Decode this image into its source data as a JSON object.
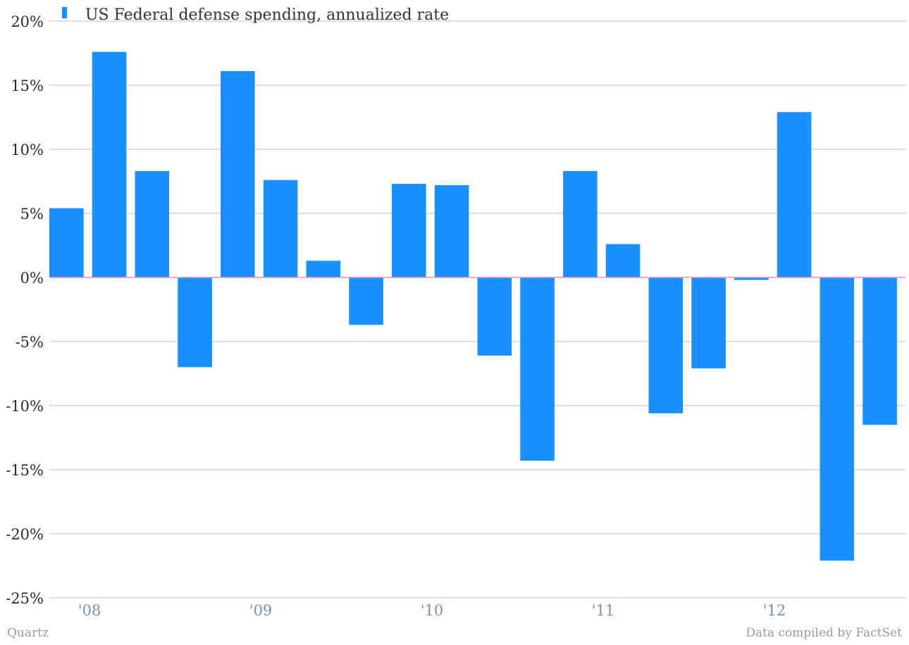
{
  "colors": {
    "bar": "#1890ff",
    "grid": "#bdbdbd",
    "zero_line": "#e88fbf",
    "tick_label": "#2b2b2b",
    "x_tick_label": "#6f93b3",
    "footer": "#9a9a9a"
  },
  "footer": {
    "left": "Quartz",
    "right": "Data compiled by FactSet"
  },
  "chart_data": {
    "type": "bar",
    "legend_position": "top-left",
    "grid": true,
    "ylim": [
      -25,
      20
    ],
    "y_ticks": [
      20,
      15,
      10,
      5,
      0,
      -5,
      -10,
      -15,
      -20,
      -25
    ],
    "y_tick_labels": [
      "20%",
      "15%",
      "10%",
      "5%",
      "0%",
      "-5%",
      "-10%",
      "-15%",
      "-20%",
      "-25%"
    ],
    "x_tick_labels": [
      {
        "label": "'08",
        "bar_index": 1
      },
      {
        "label": "'09",
        "bar_index": 5
      },
      {
        "label": "'10",
        "bar_index": 9
      },
      {
        "label": "'11",
        "bar_index": 13
      },
      {
        "label": "'12",
        "bar_index": 17
      }
    ],
    "series": [
      {
        "name": "US Federal defense spending, annualized rate",
        "values": [
          5.4,
          17.6,
          8.3,
          -7.0,
          16.1,
          7.6,
          1.3,
          -3.7,
          7.3,
          7.2,
          -6.1,
          -14.3,
          8.3,
          2.6,
          -10.6,
          -7.1,
          -0.2,
          12.9,
          -22.1,
          -11.5
        ]
      }
    ]
  }
}
